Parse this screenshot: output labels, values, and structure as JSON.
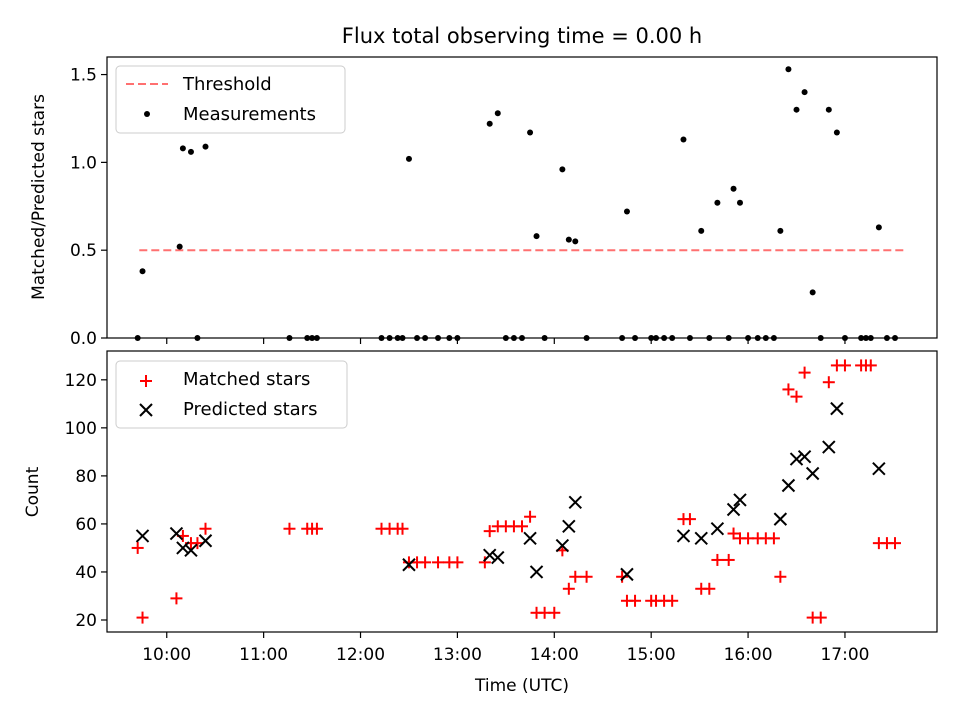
{
  "chart_data": [
    {
      "type": "scatter",
      "title": "Flux total observing time = 0.00 h",
      "xlabel": "",
      "ylabel": "Matched/Predicted stars",
      "xlim": [
        "09:23",
        "17:57"
      ],
      "ylim": [
        0,
        1.6
      ],
      "yticks": [
        0.0,
        0.5,
        1.0,
        1.5
      ],
      "ytick_labels": [
        "0.0",
        "0.5",
        "1.0",
        "1.5"
      ],
      "legend": {
        "position": "top-left",
        "entries": [
          "Threshold",
          "Measurements"
        ]
      },
      "threshold": {
        "name": "Threshold",
        "value": 0.5,
        "x": [
          "09:43",
          "17:37"
        ],
        "color": "#ff7070",
        "style": "dashed"
      },
      "series": [
        {
          "name": "Measurements",
          "color": "#000000",
          "marker": "dot",
          "points": [
            [
              "09:42",
              0.0
            ],
            [
              "09:45",
              0.38
            ],
            [
              "10:08",
              0.52
            ],
            [
              "10:10",
              1.08
            ],
            [
              "10:15",
              1.06
            ],
            [
              "10:19",
              0.0
            ],
            [
              "10:24",
              1.09
            ],
            [
              "11:16",
              0.0
            ],
            [
              "11:27",
              0.0
            ],
            [
              "11:30",
              0.0
            ],
            [
              "11:33",
              0.0
            ],
            [
              "12:13",
              0.0
            ],
            [
              "12:18",
              0.0
            ],
            [
              "12:23",
              0.0
            ],
            [
              "12:26",
              0.0
            ],
            [
              "12:30",
              1.02
            ],
            [
              "12:35",
              0.0
            ],
            [
              "12:40",
              0.0
            ],
            [
              "12:48",
              0.0
            ],
            [
              "12:55",
              0.0
            ],
            [
              "13:00",
              0.0
            ],
            [
              "13:20",
              1.22
            ],
            [
              "13:25",
              1.28
            ],
            [
              "13:30",
              0.0
            ],
            [
              "13:35",
              0.0
            ],
            [
              "13:40",
              0.0
            ],
            [
              "13:45",
              1.17
            ],
            [
              "13:49",
              0.58
            ],
            [
              "13:54",
              0.0
            ],
            [
              "14:05",
              0.96
            ],
            [
              "14:09",
              0.56
            ],
            [
              "14:13",
              0.55
            ],
            [
              "14:20",
              0.0
            ],
            [
              "14:42",
              0.0
            ],
            [
              "14:45",
              0.72
            ],
            [
              "14:50",
              0.0
            ],
            [
              "15:00",
              0.0
            ],
            [
              "15:03",
              0.0
            ],
            [
              "15:08",
              0.0
            ],
            [
              "15:13",
              0.0
            ],
            [
              "15:20",
              1.13
            ],
            [
              "15:24",
              0.0
            ],
            [
              "15:31",
              0.61
            ],
            [
              "15:36",
              0.0
            ],
            [
              "15:41",
              0.77
            ],
            [
              "15:48",
              0.0
            ],
            [
              "15:51",
              0.85
            ],
            [
              "15:55",
              0.77
            ],
            [
              "16:00",
              0.0
            ],
            [
              "16:06",
              0.0
            ],
            [
              "16:11",
              0.0
            ],
            [
              "16:16",
              0.0
            ],
            [
              "16:20",
              0.61
            ],
            [
              "16:25",
              1.53
            ],
            [
              "16:30",
              1.3
            ],
            [
              "16:35",
              1.4
            ],
            [
              "16:40",
              0.26
            ],
            [
              "16:45",
              0.0
            ],
            [
              "16:50",
              1.3
            ],
            [
              "16:55",
              1.17
            ],
            [
              "17:00",
              0.0
            ],
            [
              "17:10",
              0.0
            ],
            [
              "17:13",
              0.0
            ],
            [
              "17:16",
              0.0
            ],
            [
              "17:21",
              0.63
            ],
            [
              "17:26",
              0.0
            ],
            [
              "17:31",
              0.0
            ]
          ]
        }
      ]
    },
    {
      "type": "scatter",
      "title": "",
      "xlabel": "Time (UTC)",
      "ylabel": "Count",
      "xlim": [
        "09:23",
        "17:57"
      ],
      "ylim": [
        15,
        132
      ],
      "yticks": [
        20,
        40,
        60,
        80,
        100,
        120
      ],
      "ytick_labels": [
        "20",
        "40",
        "60",
        "80",
        "100",
        "120"
      ],
      "xticks": [
        "10:00",
        "11:00",
        "12:00",
        "13:00",
        "14:00",
        "15:00",
        "16:00",
        "17:00"
      ],
      "xtick_labels": [
        "10:00",
        "11:00",
        "12:00",
        "13:00",
        "14:00",
        "15:00",
        "16:00",
        "17:00"
      ],
      "legend": {
        "position": "top-left",
        "entries": [
          "Matched stars",
          "Predicted stars"
        ]
      },
      "series": [
        {
          "name": "Matched stars",
          "color": "#ff0000",
          "marker": "plus",
          "points": [
            [
              "09:42",
              50
            ],
            [
              "09:45",
              21
            ],
            [
              "10:06",
              29
            ],
            [
              "10:10",
              55
            ],
            [
              "10:15",
              52
            ],
            [
              "10:19",
              52
            ],
            [
              "10:24",
              58
            ],
            [
              "11:16",
              58
            ],
            [
              "11:27",
              58
            ],
            [
              "11:30",
              58
            ],
            [
              "11:33",
              58
            ],
            [
              "12:13",
              58
            ],
            [
              "12:18",
              58
            ],
            [
              "12:23",
              58
            ],
            [
              "12:26",
              58
            ],
            [
              "12:30",
              44
            ],
            [
              "12:35",
              44
            ],
            [
              "12:40",
              44
            ],
            [
              "12:48",
              44
            ],
            [
              "12:55",
              44
            ],
            [
              "13:00",
              44
            ],
            [
              "13:17",
              44
            ],
            [
              "13:20",
              57
            ],
            [
              "13:25",
              59
            ],
            [
              "13:30",
              59
            ],
            [
              "13:35",
              59
            ],
            [
              "13:40",
              59
            ],
            [
              "13:45",
              63
            ],
            [
              "13:49",
              23
            ],
            [
              "13:54",
              23
            ],
            [
              "14:00",
              23
            ],
            [
              "14:05",
              49
            ],
            [
              "14:09",
              33
            ],
            [
              "14:13",
              38
            ],
            [
              "14:20",
              38
            ],
            [
              "14:42",
              38
            ],
            [
              "14:45",
              28
            ],
            [
              "14:50",
              28
            ],
            [
              "15:00",
              28
            ],
            [
              "15:03",
              28
            ],
            [
              "15:08",
              28
            ],
            [
              "15:13",
              28
            ],
            [
              "15:20",
              62
            ],
            [
              "15:24",
              62
            ],
            [
              "15:31",
              33
            ],
            [
              "15:36",
              33
            ],
            [
              "15:41",
              45
            ],
            [
              "15:48",
              45
            ],
            [
              "15:51",
              56
            ],
            [
              "15:55",
              54
            ],
            [
              "16:00",
              54
            ],
            [
              "16:06",
              54
            ],
            [
              "16:11",
              54
            ],
            [
              "16:16",
              54
            ],
            [
              "16:20",
              38
            ],
            [
              "16:25",
              116
            ],
            [
              "16:30",
              113
            ],
            [
              "16:35",
              123
            ],
            [
              "16:40",
              21
            ],
            [
              "16:45",
              21
            ],
            [
              "16:50",
              119
            ],
            [
              "16:55",
              126
            ],
            [
              "17:00",
              126
            ],
            [
              "17:10",
              126
            ],
            [
              "17:13",
              126
            ],
            [
              "17:16",
              126
            ],
            [
              "17:21",
              52
            ],
            [
              "17:26",
              52
            ],
            [
              "17:31",
              52
            ]
          ]
        },
        {
          "name": "Predicted stars",
          "color": "#000000",
          "marker": "x",
          "points": [
            [
              "09:45",
              55
            ],
            [
              "10:06",
              56
            ],
            [
              "10:10",
              50
            ],
            [
              "10:15",
              49
            ],
            [
              "10:24",
              53
            ],
            [
              "12:30",
              43
            ],
            [
              "13:20",
              47
            ],
            [
              "13:25",
              46
            ],
            [
              "13:45",
              54
            ],
            [
              "13:49",
              40
            ],
            [
              "14:05",
              51
            ],
            [
              "14:09",
              59
            ],
            [
              "14:13",
              69
            ],
            [
              "14:45",
              39
            ],
            [
              "15:20",
              55
            ],
            [
              "15:31",
              54
            ],
            [
              "15:41",
              58
            ],
            [
              "15:51",
              66
            ],
            [
              "15:55",
              70
            ],
            [
              "16:20",
              62
            ],
            [
              "16:25",
              76
            ],
            [
              "16:30",
              87
            ],
            [
              "16:35",
              88
            ],
            [
              "16:40",
              81
            ],
            [
              "16:50",
              92
            ],
            [
              "16:55",
              108
            ],
            [
              "17:21",
              83
            ]
          ]
        }
      ]
    }
  ]
}
